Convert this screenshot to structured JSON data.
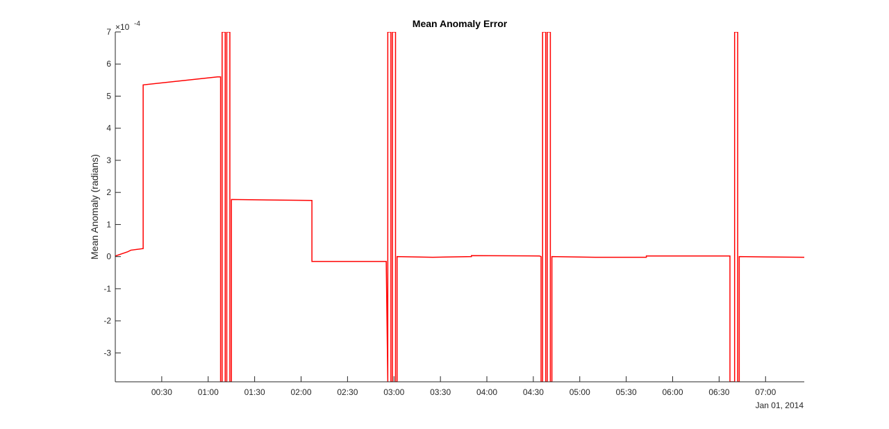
{
  "chart_data": {
    "type": "line",
    "title": "Mean Anomaly Error",
    "ylabel": "Mean Anomaly (radians)",
    "xlabel": "",
    "y_exponent_label": "×10",
    "y_exponent_power": "-4",
    "x_date_label": "Jan 01, 2014",
    "xlim": [
      "00:00",
      "07:25"
    ],
    "ylim": [
      -3.9,
      7
    ],
    "y_ticks": [
      -3,
      -2,
      -1,
      0,
      1,
      2,
      3,
      4,
      5,
      6,
      7
    ],
    "x_ticks": [
      {
        "time": "00:30",
        "label": "00:30"
      },
      {
        "time": "01:00",
        "label": "01:00"
      },
      {
        "time": "01:30",
        "label": "01:30"
      },
      {
        "time": "02:00",
        "label": "02:00"
      },
      {
        "time": "02:30",
        "label": "02:30"
      },
      {
        "time": "03:00",
        "label": "03:00"
      },
      {
        "time": "03:30",
        "label": "03:30"
      },
      {
        "time": "04:00",
        "label": "04:00"
      },
      {
        "time": "04:30",
        "label": "04:30"
      },
      {
        "time": "05:00",
        "label": "05:00"
      },
      {
        "time": "05:30",
        "label": "05:30"
      },
      {
        "time": "06:00",
        "label": "06:00"
      },
      {
        "time": "06:30",
        "label": "06:30"
      },
      {
        "time": "07:00",
        "label": "07:00"
      }
    ],
    "grid": false,
    "series": [
      {
        "color": "#ff0000",
        "points": [
          [
            "00:00",
            0.02
          ],
          [
            "00:08",
            0.15
          ],
          [
            "00:10",
            0.2
          ],
          [
            "00:18",
            0.25
          ],
          [
            "00:18",
            5.35
          ],
          [
            "01:06",
            5.6
          ],
          [
            "01:07",
            5.6
          ],
          [
            "01:08",
            5.6
          ],
          [
            "01:08",
            -3.9
          ],
          [
            "01:09",
            -3.9
          ],
          [
            "01:09",
            7
          ],
          [
            "01:11",
            7
          ],
          [
            "01:11",
            -3.9
          ],
          [
            "01:12",
            -3.9
          ],
          [
            "01:12",
            7
          ],
          [
            "01:14",
            7
          ],
          [
            "01:14",
            -3.9
          ],
          [
            "01:15",
            -3.9
          ],
          [
            "01:15",
            1.78
          ],
          [
            "02:07",
            1.75
          ],
          [
            "02:07",
            -0.15
          ],
          [
            "02:55",
            -0.15
          ],
          [
            "02:56",
            -3.9
          ],
          [
            "02:56",
            7
          ],
          [
            "02:58",
            7
          ],
          [
            "02:58",
            -3.9
          ],
          [
            "02:58",
            -3.9
          ],
          [
            "02:59",
            -3.9
          ],
          [
            "02:59",
            7
          ],
          [
            "03:01",
            7
          ],
          [
            "03:01",
            -3.9
          ],
          [
            "03:02",
            -3.9
          ],
          [
            "03:02",
            0.0
          ],
          [
            "03:25",
            -0.02
          ],
          [
            "03:50",
            0.0
          ],
          [
            "03:50",
            0.03
          ],
          [
            "04:34",
            0.02
          ],
          [
            "04:35",
            0.0
          ],
          [
            "04:35",
            -3.9
          ],
          [
            "04:36",
            -3.9
          ],
          [
            "04:36",
            7
          ],
          [
            "04:38",
            7
          ],
          [
            "04:38",
            -3.9
          ],
          [
            "04:39",
            -3.9
          ],
          [
            "04:39",
            7
          ],
          [
            "04:41",
            7
          ],
          [
            "04:41",
            -3.9
          ],
          [
            "04:42",
            -3.9
          ],
          [
            "04:42",
            0.0
          ],
          [
            "05:10",
            -0.02
          ],
          [
            "05:43",
            -0.02
          ],
          [
            "05:43",
            0.02
          ],
          [
            "06:37",
            0.02
          ],
          [
            "06:37",
            -3.9
          ],
          [
            "06:40",
            -3.9
          ],
          [
            "06:40",
            7
          ],
          [
            "06:42",
            7
          ],
          [
            "06:42",
            -3.9
          ],
          [
            "06:43",
            -3.9
          ],
          [
            "06:43",
            0.0
          ],
          [
            "07:00",
            -0.01
          ],
          [
            "07:25",
            -0.02
          ]
        ]
      }
    ]
  }
}
